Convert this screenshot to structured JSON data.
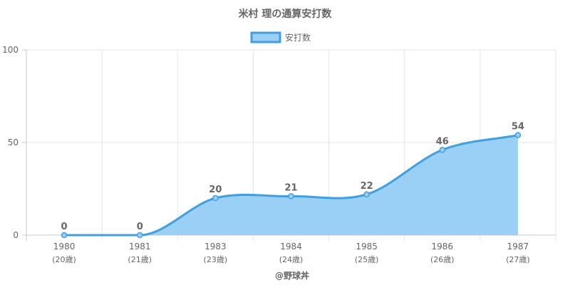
{
  "chart_data": {
    "type": "area",
    "title": "米村 理の通算安打数",
    "categories": [
      "1980",
      "1981",
      "1983",
      "1984",
      "1985",
      "1986",
      "1987"
    ],
    "sub_labels": [
      "(20歳)",
      "(21歳)",
      "(23歳)",
      "(24歳)",
      "(25歳)",
      "(26歳)",
      "(27歳)"
    ],
    "series": [
      {
        "name": "安打数",
        "values": [
          0,
          0,
          20,
          21,
          22,
          46,
          54
        ]
      }
    ],
    "ylim": [
      0,
      100
    ],
    "yticks": [
      "0",
      "50",
      "100"
    ],
    "grid": true,
    "legend": "top-center",
    "colors": {
      "line": "#3ea0e4",
      "fill": "#9ad0f5",
      "grid": "#e5e5e5",
      "axis": "#c8c8c8"
    },
    "credit": "@野球丼"
  }
}
